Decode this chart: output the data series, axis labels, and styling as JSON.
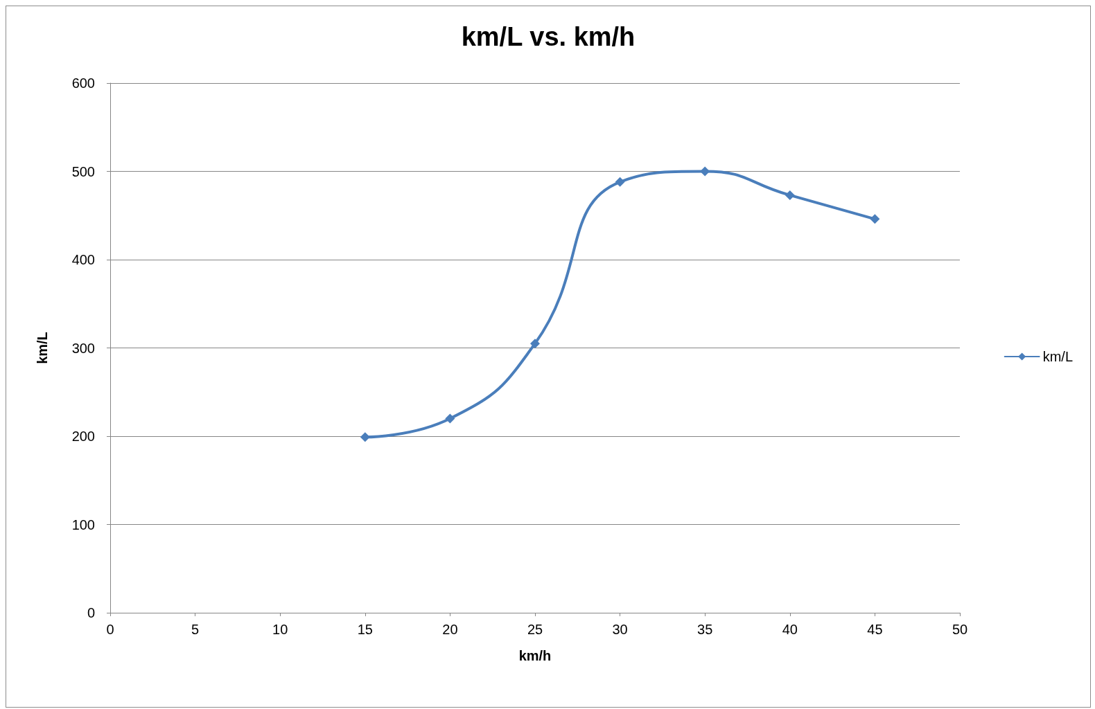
{
  "chart_data": {
    "type": "line",
    "title": "km/L vs. km/h",
    "xlabel": "km/h",
    "ylabel": "km/L",
    "x": [
      15,
      20,
      25,
      30,
      35,
      40,
      45
    ],
    "series": [
      {
        "name": "km/L",
        "color": "#4a7ebb",
        "values": [
          199,
          220,
          305,
          488,
          500,
          473,
          446
        ]
      }
    ],
    "xlim": [
      0,
      50
    ],
    "xticks": [
      0,
      5,
      10,
      15,
      20,
      25,
      30,
      35,
      40,
      45,
      50
    ],
    "ylim": [
      0,
      600
    ],
    "yticks": [
      0,
      100,
      200,
      300,
      400,
      500,
      600
    ],
    "grid": "y",
    "legend": "right",
    "marker": "diamond",
    "line_style": "solid"
  }
}
